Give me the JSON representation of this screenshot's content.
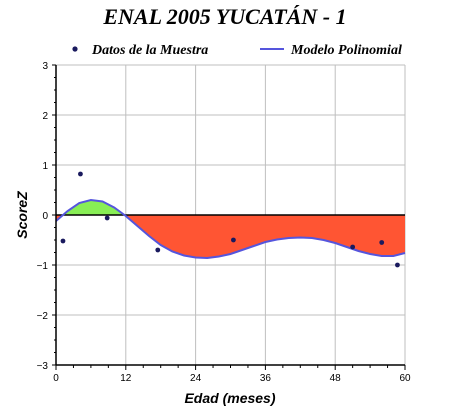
{
  "chart_data": {
    "type": "line",
    "title": "ENAL 2005 YUCATÁN - 1",
    "xlabel": "Edad (meses)",
    "ylabel": "ScoreZ",
    "xlim": [
      0,
      60
    ],
    "ylim": [
      -3,
      3
    ],
    "x_ticks": [
      0,
      12,
      24,
      36,
      48,
      60
    ],
    "y_ticks": [
      -3,
      -2,
      -1,
      0,
      1,
      2,
      3
    ],
    "x_tick_labels": [
      "0",
      "12",
      "24",
      "36",
      "48",
      "60"
    ],
    "y_tick_labels": [
      "−3",
      "−2",
      "−1",
      "0",
      "1",
      "2",
      "3"
    ],
    "grid": true,
    "legend_position": "top",
    "legend": {
      "points_label": "Datos de la Muestra",
      "curve_label": "Modelo Polinomial"
    },
    "series": [
      {
        "name": "Datos de la Muestra",
        "kind": "scatter",
        "color": "#1a1a5e",
        "points": [
          {
            "x": 1.2,
            "y": -0.52
          },
          {
            "x": 4.2,
            "y": 0.82
          },
          {
            "x": 8.8,
            "y": -0.06
          },
          {
            "x": 17.5,
            "y": -0.7
          },
          {
            "x": 30.5,
            "y": -0.5
          },
          {
            "x": 51.0,
            "y": -0.64
          },
          {
            "x": 56.0,
            "y": -0.55
          },
          {
            "x": 58.7,
            "y": -1.0
          }
        ]
      },
      {
        "name": "Modelo Polinomial",
        "kind": "line",
        "color": "#5555dd",
        "points": [
          {
            "x": 0,
            "y": -0.12
          },
          {
            "x": 2,
            "y": 0.08
          },
          {
            "x": 4,
            "y": 0.24
          },
          {
            "x": 6,
            "y": 0.3
          },
          {
            "x": 8,
            "y": 0.27
          },
          {
            "x": 10,
            "y": 0.15
          },
          {
            "x": 12,
            "y": -0.02
          },
          {
            "x": 14,
            "y": -0.22
          },
          {
            "x": 16,
            "y": -0.42
          },
          {
            "x": 18,
            "y": -0.6
          },
          {
            "x": 20,
            "y": -0.73
          },
          {
            "x": 22,
            "y": -0.81
          },
          {
            "x": 24,
            "y": -0.85
          },
          {
            "x": 26,
            "y": -0.86
          },
          {
            "x": 28,
            "y": -0.83
          },
          {
            "x": 30,
            "y": -0.78
          },
          {
            "x": 32,
            "y": -0.7
          },
          {
            "x": 34,
            "y": -0.62
          },
          {
            "x": 36,
            "y": -0.54
          },
          {
            "x": 38,
            "y": -0.49
          },
          {
            "x": 40,
            "y": -0.46
          },
          {
            "x": 42,
            "y": -0.45
          },
          {
            "x": 44,
            "y": -0.46
          },
          {
            "x": 46,
            "y": -0.5
          },
          {
            "x": 48,
            "y": -0.56
          },
          {
            "x": 50,
            "y": -0.64
          },
          {
            "x": 52,
            "y": -0.72
          },
          {
            "x": 54,
            "y": -0.78
          },
          {
            "x": 56,
            "y": -0.82
          },
          {
            "x": 58,
            "y": -0.82
          },
          {
            "x": 60,
            "y": -0.76
          }
        ]
      }
    ],
    "fill_colors": {
      "positive": "#88ee55",
      "negative": "#ff5533"
    },
    "zero_line_color": "#000000",
    "grid_color": "#bfbfbf"
  }
}
